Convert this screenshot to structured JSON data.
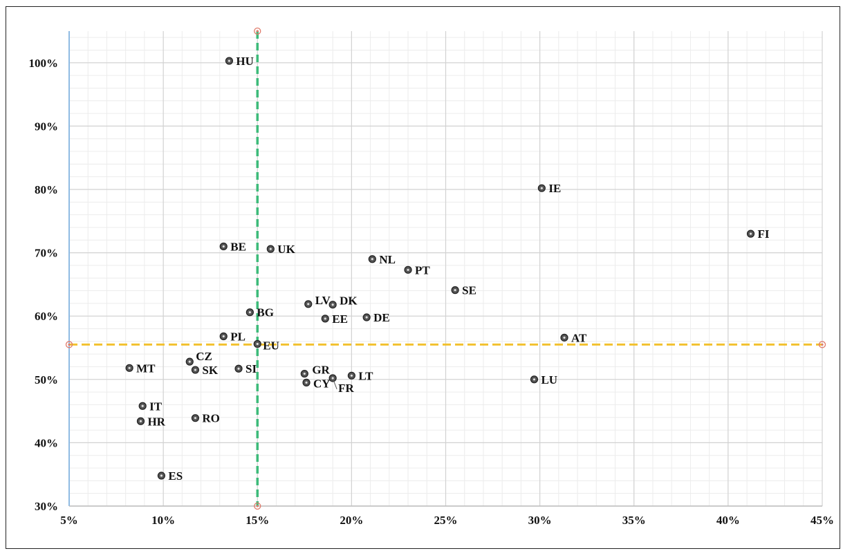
{
  "chart_data": {
    "type": "scatter",
    "title": "",
    "xlabel": "",
    "ylabel": "",
    "xlim": [
      5,
      45
    ],
    "ylim": [
      30,
      105
    ],
    "x_ticks": [
      "5%",
      "10%",
      "15%",
      "20%",
      "25%",
      "30%",
      "35%",
      "40%",
      "45%"
    ],
    "y_ticks": [
      "30%",
      "40%",
      "50%",
      "60%",
      "70%",
      "80%",
      "90%",
      "100%"
    ],
    "grid": true,
    "reference_lines": {
      "vertical_x": 15,
      "horizontal_y": 55.5,
      "vertical_color": "#3dbb7a",
      "horizontal_color": "#f2c12e"
    },
    "point_color": "#555555",
    "points": [
      {
        "label": "HU",
        "x": 13.5,
        "y": 100.3
      },
      {
        "label": "IE",
        "x": 30.1,
        "y": 80.2
      },
      {
        "label": "FI",
        "x": 41.2,
        "y": 73.0
      },
      {
        "label": "BE",
        "x": 13.2,
        "y": 71.0
      },
      {
        "label": "UK",
        "x": 15.7,
        "y": 70.6
      },
      {
        "label": "NL",
        "x": 21.1,
        "y": 69.0
      },
      {
        "label": "PT",
        "x": 23.0,
        "y": 67.3
      },
      {
        "label": "SE",
        "x": 25.5,
        "y": 64.1
      },
      {
        "label": "LV",
        "x": 17.7,
        "y": 61.9
      },
      {
        "label": "DK",
        "x": 19.0,
        "y": 61.8
      },
      {
        "label": "BG",
        "x": 14.6,
        "y": 60.6
      },
      {
        "label": "EE",
        "x": 18.6,
        "y": 59.6
      },
      {
        "label": "DE",
        "x": 20.8,
        "y": 59.8
      },
      {
        "label": "PL",
        "x": 13.2,
        "y": 56.8
      },
      {
        "label": "EU",
        "x": 15.0,
        "y": 55.6
      },
      {
        "label": "AT",
        "x": 31.3,
        "y": 56.6
      },
      {
        "label": "CZ",
        "x": 11.4,
        "y": 52.8
      },
      {
        "label": "MT",
        "x": 8.2,
        "y": 51.8
      },
      {
        "label": "SK",
        "x": 11.7,
        "y": 51.5
      },
      {
        "label": "SI",
        "x": 14.0,
        "y": 51.7
      },
      {
        "label": "GR",
        "x": 17.5,
        "y": 50.9
      },
      {
        "label": "LT",
        "x": 20.0,
        "y": 50.6
      },
      {
        "label": "FR",
        "x": 19.0,
        "y": 50.2
      },
      {
        "label": "CY",
        "x": 17.6,
        "y": 49.5
      },
      {
        "label": "LU",
        "x": 29.7,
        "y": 50.0
      },
      {
        "label": "IT",
        "x": 8.9,
        "y": 45.8
      },
      {
        "label": "HR",
        "x": 8.8,
        "y": 43.4
      },
      {
        "label": "RO",
        "x": 11.7,
        "y": 43.9
      },
      {
        "label": "ES",
        "x": 9.9,
        "y": 34.8
      }
    ]
  }
}
